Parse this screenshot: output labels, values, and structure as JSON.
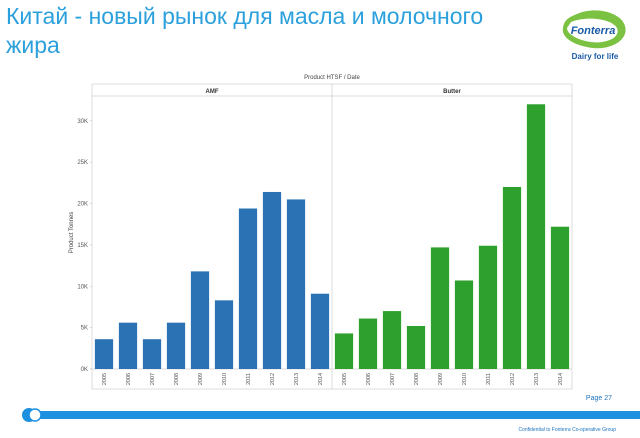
{
  "slide": {
    "title": "Китай  - новый рынок для масла и молочного жира",
    "page": "Page 27",
    "confidential": "Confidential to Fonterra Co-operative Group"
  },
  "logo": {
    "brand": "Fonterra",
    "tagline": "Dairy for life",
    "icon": "fonterra-logo"
  },
  "colors": {
    "amf": "#2a72b3",
    "butter": "#2ea02e",
    "title": "#2ba0dc",
    "footer": "#1e90e0"
  },
  "chart_data": {
    "type": "bar",
    "title": "Product HTSF  /  Date",
    "ylabel": "Product Tonnes",
    "ylim": [
      0,
      33000
    ],
    "yticks": [
      0,
      5000,
      10000,
      15000,
      20000,
      25000,
      30000
    ],
    "ytick_labels": [
      "0K",
      "5K",
      "10K",
      "15K",
      "20K",
      "25K",
      "30K"
    ],
    "grid": false,
    "panels": [
      {
        "name": "AMF",
        "color": "#2a72b3",
        "categories": [
          "2005",
          "2006",
          "2007",
          "2008",
          "2009",
          "2010",
          "2011",
          "2012",
          "2013",
          "2014"
        ],
        "values": [
          3600,
          5600,
          3600,
          5600,
          11800,
          8300,
          19400,
          21400,
          20500,
          9100
        ]
      },
      {
        "name": "Butter",
        "color": "#2ea02e",
        "categories": [
          "2005",
          "2006",
          "2007",
          "2008",
          "2009",
          "2010",
          "2011",
          "2012",
          "2013",
          "2014"
        ],
        "values": [
          4300,
          6100,
          7000,
          5200,
          14700,
          10700,
          14900,
          22000,
          32000,
          17200
        ]
      }
    ]
  }
}
